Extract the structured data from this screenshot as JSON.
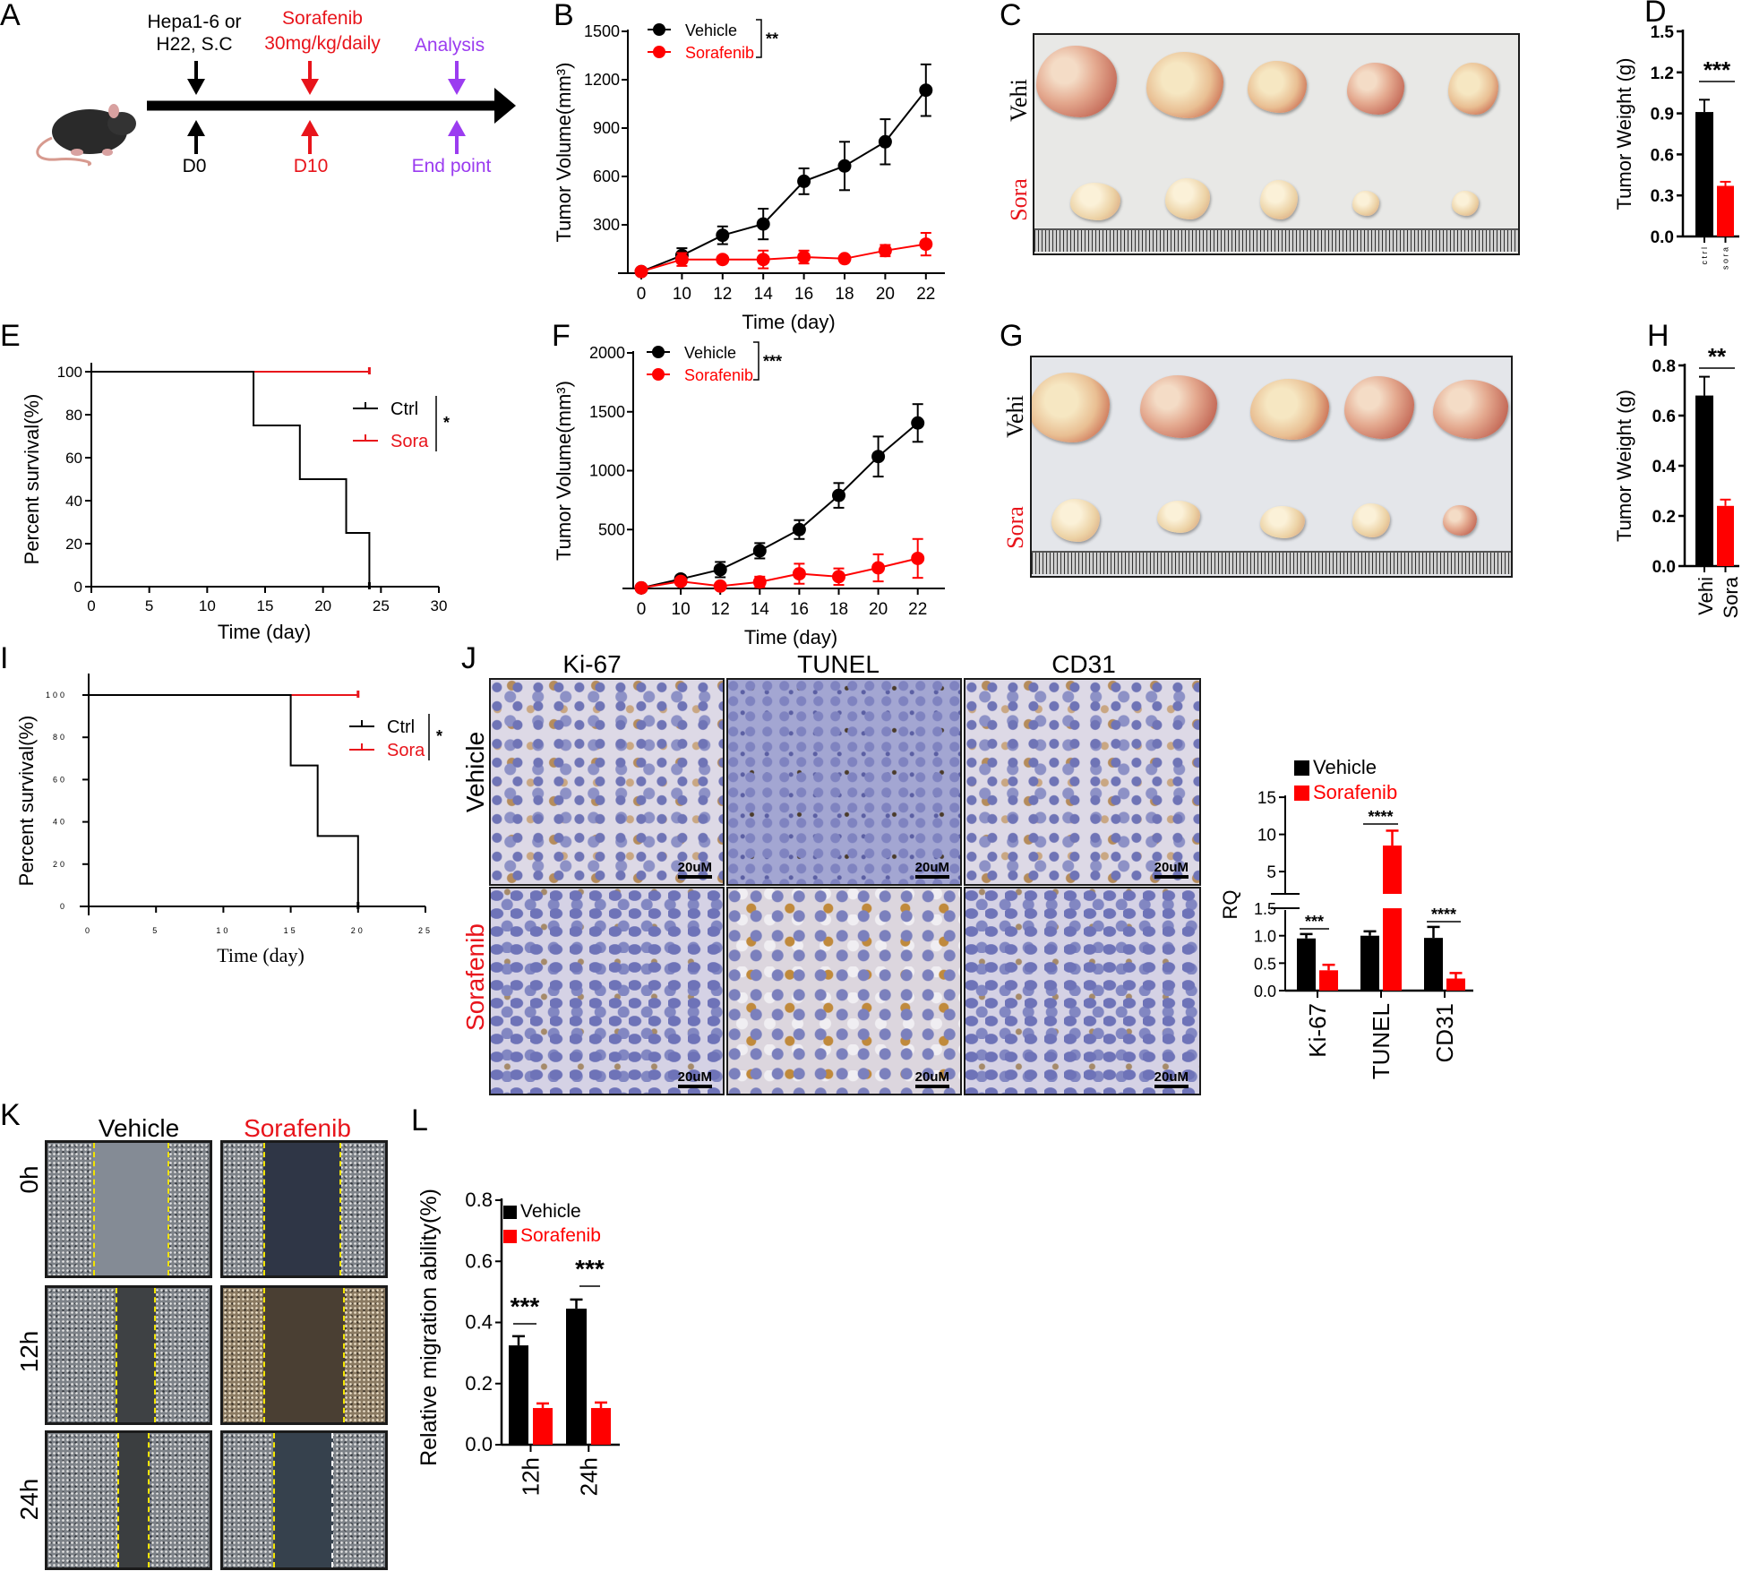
{
  "figure": {
    "panel_labels": {
      "A": "A",
      "B": "B",
      "C": "C",
      "D": "D",
      "E": "E",
      "F": "F",
      "G": "G",
      "H": "H",
      "I": "I",
      "J": "J",
      "K": "K",
      "L": "L"
    }
  },
  "panel_a": {
    "injection_line1": "Hepa1-6 or",
    "injection_line2": "H22, S.C",
    "drug_line1": "Sorafenib",
    "drug_line2": "30mg/kg/daily",
    "analysis": "Analysis",
    "day0": "D0",
    "day10": "D10",
    "endpoint": "End point"
  },
  "panel_c": {
    "row_labels": [
      "Vehi",
      "Sora"
    ]
  },
  "panel_g": {
    "row_labels": [
      "Vehi",
      "Sora"
    ]
  },
  "panel_j": {
    "columns": [
      "Ki-67",
      "TUNEL",
      "CD31"
    ],
    "rows": [
      "Vehicle",
      "Sorafenib"
    ],
    "scale_bar": "20uM"
  },
  "panel_k": {
    "columns": [
      "Vehicle",
      "Sorafenib"
    ],
    "rows": [
      "0h",
      "12h",
      "24h"
    ]
  },
  "colors": {
    "vehicle": "#000000",
    "sorafenib": "#ff0000",
    "analysis": "#9b3cf0"
  },
  "chart_data": [
    {
      "id": "B",
      "type": "line",
      "title": "",
      "xlabel": "Time (day)",
      "ylabel": "Tumor Volume(mm³)",
      "x": [
        0,
        10,
        12,
        14,
        16,
        18,
        20,
        22
      ],
      "ylim": [
        0,
        1500
      ],
      "yticks": [
        300,
        600,
        900,
        1200,
        1500
      ],
      "series": [
        {
          "name": "Vehicle",
          "color": "#000000",
          "values": [
            10,
            110,
            235,
            305,
            570,
            665,
            815,
            1135
          ],
          "errors": [
            5,
            45,
            55,
            95,
            80,
            150,
            140,
            160
          ]
        },
        {
          "name": "Sorafenib",
          "color": "#ff0000",
          "values": [
            10,
            85,
            85,
            85,
            100,
            90,
            140,
            180
          ],
          "errors": [
            5,
            40,
            20,
            55,
            40,
            15,
            35,
            70
          ]
        }
      ],
      "significance": "**",
      "legend": "top-left"
    },
    {
      "id": "D",
      "type": "bar",
      "categories": [
        "c t r l",
        "s o r a"
      ],
      "values": [
        0.91,
        0.37
      ],
      "errors": [
        0.09,
        0.03
      ],
      "colors": [
        "#000000",
        "#ff0000"
      ],
      "ylabel": "Tumor Weight (g)",
      "ylim": [
        0,
        1.5
      ],
      "yticks": [
        "0.0",
        "0.3",
        "0.6",
        "0.9",
        "1.2",
        "1.5"
      ],
      "significance": "***"
    },
    {
      "id": "E",
      "type": "line",
      "subtype": "kaplan-meier",
      "xlabel": "Time (day)",
      "ylabel": "Percent survival(%)",
      "xlim": [
        0,
        30
      ],
      "xticks": [
        0,
        5,
        10,
        15,
        20,
        25,
        30
      ],
      "ylim": [
        0,
        100
      ],
      "yticks": [
        0,
        20,
        40,
        60,
        80,
        100
      ],
      "series": [
        {
          "name": "Ctrl",
          "color": "#000000",
          "steps": [
            [
              0,
              100
            ],
            [
              14,
              75
            ],
            [
              18,
              50
            ],
            [
              22,
              25
            ],
            [
              24,
              0
            ]
          ]
        },
        {
          "name": "Sora",
          "color": "#e8141b",
          "steps": [
            [
              0,
              100
            ],
            [
              24,
              100
            ]
          ]
        }
      ],
      "significance": "*"
    },
    {
      "id": "F",
      "type": "line",
      "xlabel": "Time (day)",
      "ylabel": "Tumor Volume(mm³)",
      "x": [
        0,
        10,
        12,
        14,
        16,
        18,
        20,
        22
      ],
      "ylim": [
        0,
        2000
      ],
      "yticks": [
        500,
        1000,
        1500,
        2000
      ],
      "series": [
        {
          "name": "Vehicle",
          "color": "#000000",
          "values": [
            5,
            80,
            160,
            320,
            500,
            790,
            1120,
            1405
          ],
          "errors": [
            5,
            20,
            65,
            65,
            80,
            105,
            170,
            160
          ]
        },
        {
          "name": "Sorafenib",
          "color": "#ff0000",
          "values": [
            5,
            60,
            20,
            55,
            125,
            100,
            175,
            255
          ],
          "errors": [
            5,
            20,
            10,
            45,
            85,
            70,
            115,
            165
          ]
        }
      ],
      "significance": "***",
      "legend": "top-left"
    },
    {
      "id": "H",
      "type": "bar",
      "categories": [
        "Vehi",
        "Sora"
      ],
      "values": [
        0.68,
        0.24
      ],
      "errors": [
        0.075,
        0.025
      ],
      "colors": [
        "#000000",
        "#ff0000"
      ],
      "ylabel": "Tumor Weight (g)",
      "ylim": [
        0,
        0.8
      ],
      "yticks": [
        "0.0",
        "0.2",
        "0.4",
        "0.6",
        "0.8"
      ],
      "significance": "**"
    },
    {
      "id": "I",
      "type": "line",
      "subtype": "kaplan-meier",
      "xlabel": "Time (day)",
      "ylabel": "Percent survival(%)",
      "xlim": [
        0,
        25
      ],
      "xticks": [
        0,
        5,
        10,
        15,
        20,
        25
      ],
      "ylim": [
        0,
        100
      ],
      "yticks": [
        0,
        20,
        40,
        60,
        80,
        100
      ],
      "series": [
        {
          "name": "Ctrl",
          "color": "#000000",
          "steps": [
            [
              0,
              100
            ],
            [
              15,
              66.7
            ],
            [
              17,
              33.3
            ],
            [
              20,
              0
            ]
          ]
        },
        {
          "name": "Sora",
          "color": "#e8141b",
          "steps": [
            [
              0,
              100
            ],
            [
              20,
              100
            ]
          ]
        }
      ],
      "significance": "*"
    },
    {
      "id": "J-RQ",
      "type": "bar",
      "categories": [
        "Ki-67",
        "TUNEL",
        "CD31"
      ],
      "series": [
        {
          "name": "Vehicle",
          "color": "#000000",
          "values": [
            0.95,
            1.0,
            0.96
          ],
          "errors": [
            0.08,
            0.08,
            0.2
          ]
        },
        {
          "name": "Sorafenib",
          "color": "#ff0000",
          "values": [
            0.37,
            8.5,
            0.22
          ],
          "errors": [
            0.1,
            2.0,
            0.1
          ]
        }
      ],
      "ylabel": "RQ",
      "yticks": [
        "0.0",
        "0.5",
        "1.0",
        "1.5"
      ],
      "yticks_upper": [
        "5",
        "10",
        "15"
      ],
      "axis_break": [
        1.5,
        2
      ],
      "ylim": [
        0,
        15
      ],
      "significance": [
        "***",
        "****",
        "****"
      ]
    },
    {
      "id": "L",
      "type": "bar",
      "categories": [
        "12h",
        "24h"
      ],
      "series": [
        {
          "name": "Vehicle",
          "color": "#000000",
          "values": [
            0.325,
            0.445
          ],
          "errors": [
            0.03,
            0.03
          ]
        },
        {
          "name": "Sorafenib",
          "color": "#ff0000",
          "values": [
            0.12,
            0.12
          ],
          "errors": [
            0.015,
            0.018
          ]
        }
      ],
      "ylabel": "Relative migration ability(%)",
      "ylim": [
        0,
        0.8
      ],
      "yticks": [
        "0.0",
        "0.2",
        "0.4",
        "0.6",
        "0.8"
      ],
      "significance": [
        "***",
        "***"
      ]
    }
  ]
}
